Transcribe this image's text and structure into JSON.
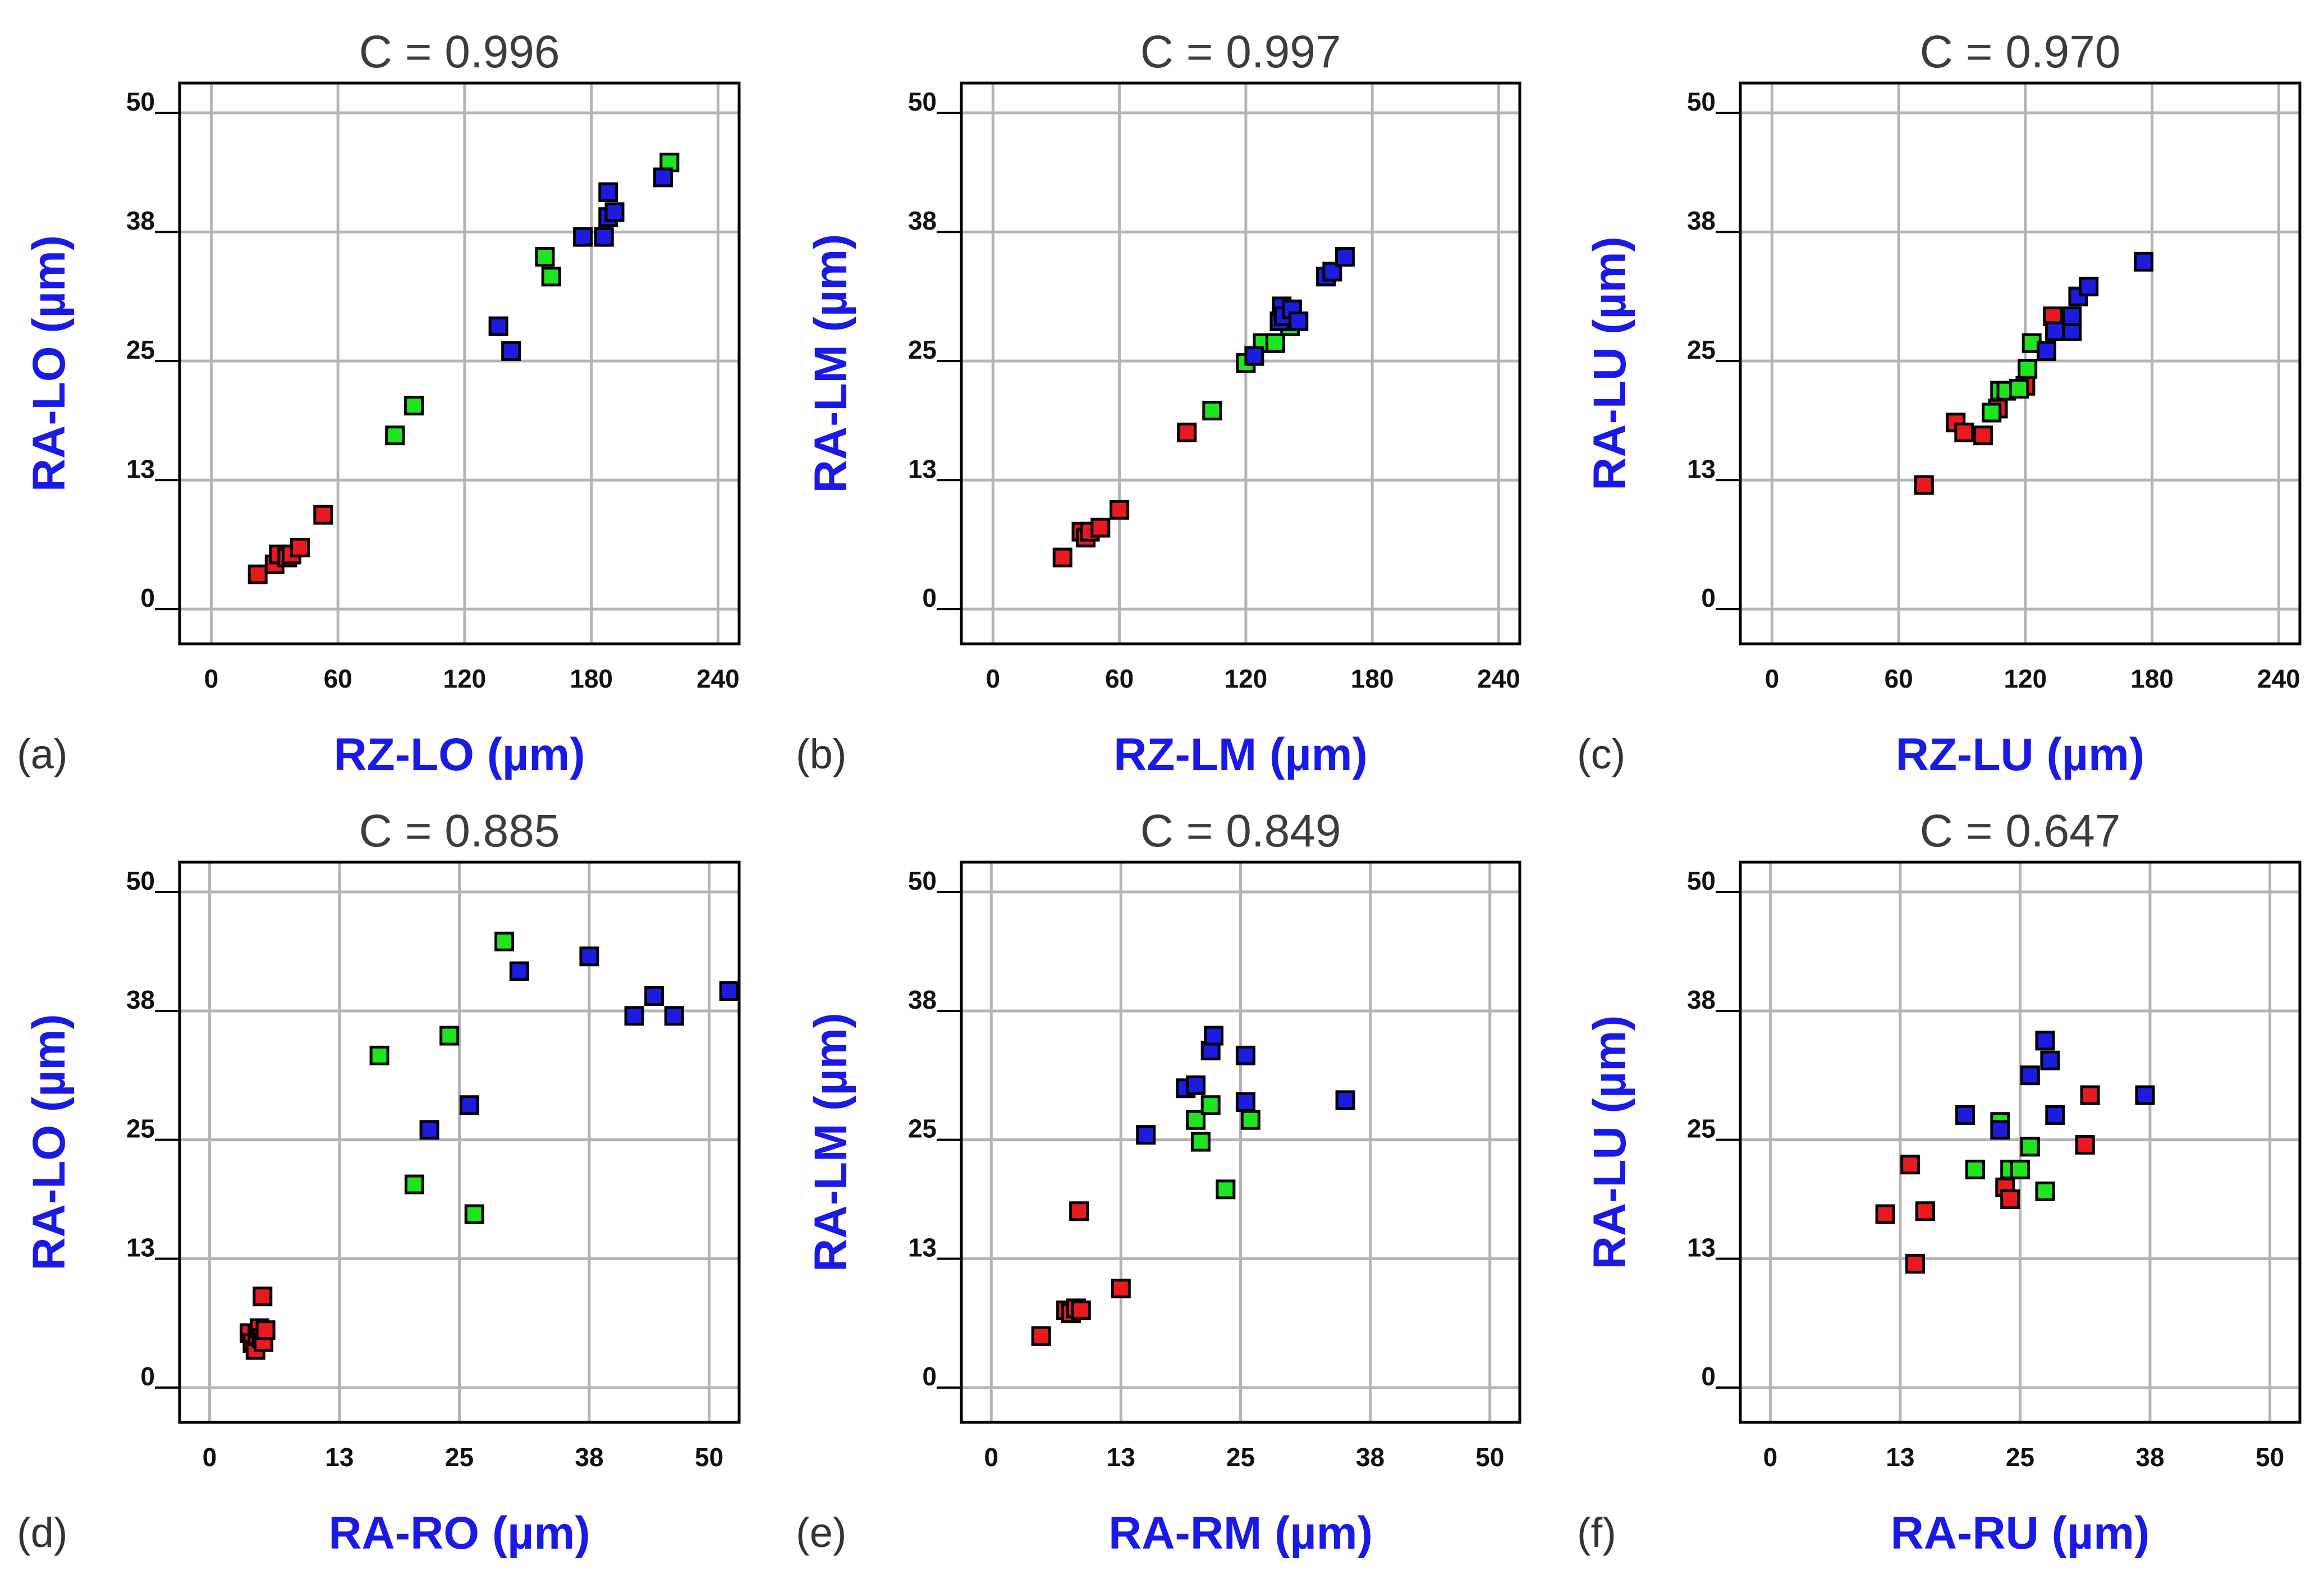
{
  "colors": {
    "red": "#e8191f",
    "green": "#1ee61e",
    "blue": "#1c1ce0",
    "grid": "#b4b4b4",
    "axis_label": "#1a1ae6"
  },
  "chart_data": [
    {
      "type": "scatter",
      "panel_label": "(a)",
      "title": "C = 0.996",
      "xlabel": "RZ-LO (µm)",
      "ylabel": "RA-LO (µm)",
      "xlim": [
        -15,
        250
      ],
      "ylim": [
        -3.5,
        53
      ],
      "xticks": [
        0,
        60,
        120,
        180,
        240
      ],
      "yticks": [
        0,
        13,
        25,
        38,
        50
      ],
      "ytick_labels": [
        "0",
        "13",
        "25",
        "38",
        "50"
      ],
      "grid": true,
      "series": [
        {
          "color": "red",
          "points": [
            [
              22,
              3.5
            ],
            [
              30,
              4.5
            ],
            [
              32,
              5.5
            ],
            [
              36,
              5.2
            ],
            [
              38,
              5.5
            ],
            [
              42,
              6.2
            ],
            [
              53,
              9.5
            ]
          ]
        },
        {
          "color": "green",
          "points": [
            [
              87,
              17.5
            ],
            [
              96,
              20.5
            ],
            [
              158,
              35.5
            ],
            [
              161,
              33.5
            ],
            [
              217,
              45
            ]
          ]
        },
        {
          "color": "blue",
          "points": [
            [
              136,
              28.5
            ],
            [
              142,
              26
            ],
            [
              176,
              37.5
            ],
            [
              186,
              37.5
            ],
            [
              188,
              42
            ],
            [
              188,
              39.5
            ],
            [
              191,
              40
            ],
            [
              214,
              43.5
            ]
          ]
        }
      ]
    },
    {
      "type": "scatter",
      "panel_label": "(b)",
      "title": "C = 0.997",
      "xlabel": "RZ-LM (µm)",
      "ylabel": "RA-LM (µm)",
      "xlim": [
        -15,
        250
      ],
      "ylim": [
        -3.5,
        53
      ],
      "xticks": [
        0,
        60,
        120,
        180,
        240
      ],
      "yticks": [
        0,
        13,
        25,
        38,
        50
      ],
      "ytick_labels": [
        "0",
        "13",
        "25",
        "38",
        "50"
      ],
      "grid": true,
      "series": [
        {
          "color": "red",
          "points": [
            [
              33,
              5.2
            ],
            [
              42,
              7.8
            ],
            [
              44,
              7.2
            ],
            [
              46,
              7.8
            ],
            [
              51,
              8.2
            ],
            [
              60,
              10
            ],
            [
              92,
              17.8
            ]
          ]
        },
        {
          "color": "green",
          "points": [
            [
              104,
              20
            ],
            [
              120,
              24.8
            ],
            [
              128,
              26.8
            ],
            [
              134,
              26.8
            ],
            [
              141,
              28.5
            ]
          ]
        },
        {
          "color": "blue",
          "points": [
            [
              124,
              25.5
            ],
            [
              136,
              29
            ],
            [
              137,
              30.5
            ],
            [
              138,
              29.5
            ],
            [
              142,
              30.2
            ],
            [
              145,
              29
            ],
            [
              158,
              33.5
            ],
            [
              161,
              34
            ],
            [
              167,
              35.5
            ]
          ]
        }
      ]
    },
    {
      "type": "scatter",
      "panel_label": "(c)",
      "title": "C = 0.970",
      "xlabel": "RZ-LU (µm)",
      "ylabel": "RA-LU (µm)",
      "xlim": [
        -15,
        250
      ],
      "ylim": [
        -3.5,
        53
      ],
      "xticks": [
        0,
        60,
        120,
        180,
        240
      ],
      "yticks": [
        0,
        13,
        25,
        38,
        50
      ],
      "ytick_labels": [
        "0",
        "13",
        "25",
        "38",
        "50"
      ],
      "grid": true,
      "series": [
        {
          "color": "red",
          "points": [
            [
              72,
              12.5
            ],
            [
              87,
              18.8
            ],
            [
              91,
              17.8
            ],
            [
              100,
              17.5
            ],
            [
              107,
              20.2
            ],
            [
              120,
              22.5
            ],
            [
              133,
              29.5
            ]
          ]
        },
        {
          "color": "green",
          "points": [
            [
              104,
              19.8
            ],
            [
              108,
              22
            ],
            [
              111,
              22
            ],
            [
              117,
              22.2
            ],
            [
              121,
              24.2
            ],
            [
              123,
              26.8
            ]
          ]
        },
        {
          "color": "blue",
          "points": [
            [
              130,
              26
            ],
            [
              134,
              28
            ],
            [
              142,
              28
            ],
            [
              142,
              29.5
            ],
            [
              145,
              31.5
            ],
            [
              150,
              32.5
            ],
            [
              176,
              35
            ]
          ]
        }
      ]
    },
    {
      "type": "scatter",
      "panel_label": "(d)",
      "title": "C = 0.885",
      "xlabel": "RA-RO (µm)",
      "ylabel": "RA-LO (µm)",
      "xlim": [
        -3,
        53
      ],
      "ylim": [
        -3.5,
        53
      ],
      "xticks": [
        0,
        13,
        25,
        38,
        50
      ],
      "yticks": [
        0,
        13,
        25,
        38,
        50
      ],
      "ytick_labels": [
        "0",
        "13",
        "25",
        "38",
        "50"
      ],
      "grid": true,
      "series": [
        {
          "color": "red",
          "points": [
            [
              4,
              5.5
            ],
            [
              4.3,
              4.5
            ],
            [
              4.6,
              3.8
            ],
            [
              4.8,
              5.2
            ],
            [
              5,
              6
            ],
            [
              5.2,
              5
            ],
            [
              5.3,
              9.2
            ],
            [
              5.4,
              4.6
            ],
            [
              5.6,
              5.8
            ]
          ]
        },
        {
          "color": "green",
          "points": [
            [
              17,
              33.5
            ],
            [
              20.5,
              20.5
            ],
            [
              24,
              35.5
            ],
            [
              26.5,
              17.5
            ],
            [
              29.5,
              45
            ]
          ]
        },
        {
          "color": "blue",
          "points": [
            [
              22,
              26
            ],
            [
              26,
              28.5
            ],
            [
              31,
              42
            ],
            [
              38,
              43.5
            ],
            [
              42.5,
              37.5
            ],
            [
              44.5,
              39.5
            ],
            [
              46.5,
              37.5
            ],
            [
              52,
              40
            ]
          ]
        }
      ]
    },
    {
      "type": "scatter",
      "panel_label": "(e)",
      "title": "C = 0.849",
      "xlabel": "RA-RM (µm)",
      "ylabel": "RA-LM (µm)",
      "xlim": [
        -3,
        53
      ],
      "ylim": [
        -3.5,
        53
      ],
      "xticks": [
        0,
        13,
        25,
        38,
        50
      ],
      "yticks": [
        0,
        13,
        25,
        38,
        50
      ],
      "ytick_labels": [
        "0",
        "13",
        "25",
        "38",
        "50"
      ],
      "grid": true,
      "series": [
        {
          "color": "red",
          "points": [
            [
              5,
              5.2
            ],
            [
              7.5,
              7.8
            ],
            [
              8,
              7.5
            ],
            [
              8.5,
              8
            ],
            [
              8.8,
              17.8
            ],
            [
              9,
              7.8
            ],
            [
              13,
              10
            ]
          ]
        },
        {
          "color": "green",
          "points": [
            [
              20.5,
              27
            ],
            [
              21,
              24.8
            ],
            [
              22,
              28.5
            ],
            [
              23.5,
              20
            ],
            [
              26,
              27
            ]
          ]
        },
        {
          "color": "blue",
          "points": [
            [
              15.5,
              25.5
            ],
            [
              19.5,
              30.2
            ],
            [
              20.5,
              30.5
            ],
            [
              22,
              34
            ],
            [
              22.3,
              35.5
            ],
            [
              25.5,
              28.8
            ],
            [
              25.5,
              33.5
            ],
            [
              35.5,
              29
            ]
          ]
        }
      ]
    },
    {
      "type": "scatter",
      "panel_label": "(f)",
      "title": "C = 0.647",
      "xlabel": "RA-RU (µm)",
      "ylabel": "RA-LU (µm)",
      "xlim": [
        -3,
        53
      ],
      "ylim": [
        -3.5,
        53
      ],
      "xticks": [
        0,
        13,
        25,
        38,
        50
      ],
      "yticks": [
        0,
        13,
        25,
        38,
        50
      ],
      "ytick_labels": [
        "0",
        "13",
        "25",
        "38",
        "50"
      ],
      "grid": true,
      "series": [
        {
          "color": "red",
          "points": [
            [
              11.5,
              17.5
            ],
            [
              14,
              22.5
            ],
            [
              14.5,
              12.5
            ],
            [
              15.5,
              17.8
            ],
            [
              23.5,
              20.2
            ],
            [
              24,
              19
            ],
            [
              31.5,
              24.5
            ],
            [
              32,
              29.5
            ]
          ]
        },
        {
          "color": "green",
          "points": [
            [
              20.5,
              22
            ],
            [
              23,
              26.8
            ],
            [
              24,
              22
            ],
            [
              25,
              22
            ],
            [
              26,
              24.3
            ],
            [
              27.5,
              19.8
            ]
          ]
        },
        {
          "color": "blue",
          "points": [
            [
              19.5,
              27.5
            ],
            [
              23,
              26
            ],
            [
              26,
              31.5
            ],
            [
              27.5,
              35
            ],
            [
              28,
              33
            ],
            [
              28.5,
              27.5
            ],
            [
              37.5,
              29.5
            ]
          ]
        }
      ]
    }
  ]
}
